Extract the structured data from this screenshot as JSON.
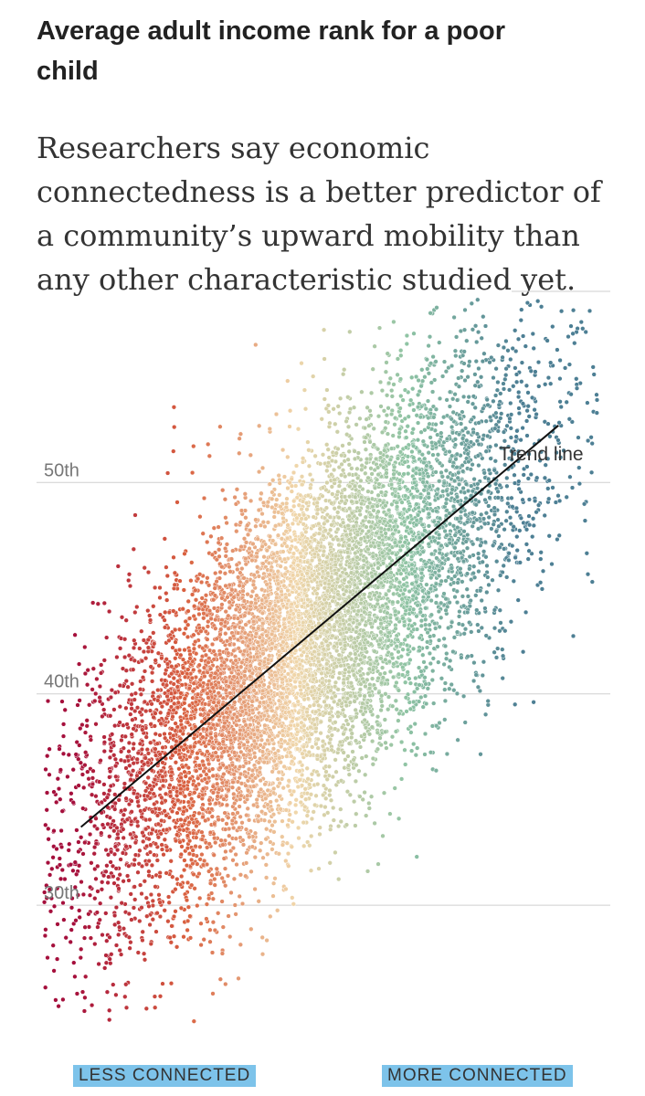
{
  "header": {
    "title": "Average adult income rank for a poor child",
    "subtitle": "Researchers say economic connectedness is a better predictor of a community’s upward mobility than any other characteristic studied yet."
  },
  "chart_data": {
    "type": "scatter",
    "title": "Average adult income rank for a poor child",
    "ylabel": "",
    "xlabel": "",
    "ylim": [
      24,
      59
    ],
    "y_ticks": [
      {
        "value": 30,
        "label": "30th"
      },
      {
        "value": 40,
        "label": "40th"
      },
      {
        "value": 50,
        "label": "50th"
      }
    ],
    "x_axis_labels": {
      "left": "LESS CONNECTED",
      "right": "MORE CONNECTED"
    },
    "trend_line": {
      "label": "Trend line",
      "x": [
        0.12,
        1.41
      ],
      "y": [
        33.7,
        52.7
      ]
    },
    "point_count_approx": 9000,
    "color_scale": [
      "#a50f3c",
      "#d9603f",
      "#f0d6aa",
      "#8fc4a4",
      "#4d7f94"
    ],
    "grid": true
  }
}
